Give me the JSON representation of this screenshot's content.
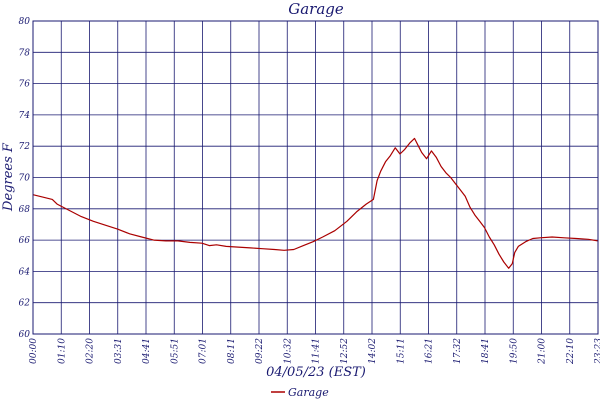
{
  "colors": {
    "axis": "#191970",
    "grid": "#191970",
    "series": "#aa0000",
    "background": "#ffffff"
  },
  "chart_data": {
    "type": "line",
    "title": "Garage",
    "xlabel": "04/05/23 (EST)",
    "ylabel": "Degrees F",
    "ylim": [
      60,
      80
    ],
    "yticks": [
      60,
      62,
      64,
      66,
      68,
      70,
      72,
      74,
      76,
      78,
      80
    ],
    "xticks": [
      "00:00",
      "01:10",
      "02:20",
      "03:31",
      "04:41",
      "05:51",
      "07:01",
      "08:11",
      "09:22",
      "10:32",
      "11:41",
      "12:52",
      "14:02",
      "15:11",
      "16:21",
      "17:32",
      "18:41",
      "19:50",
      "21:00",
      "22:10",
      "23:23"
    ],
    "grid": true,
    "legend": {
      "position": "bottom-center",
      "entries": [
        "Garage"
      ]
    },
    "series": [
      {
        "name": "Garage",
        "x": [
          0.0,
          0.4,
          0.8,
          1.0,
          1.5,
          2.0,
          2.5,
          3.0,
          3.5,
          4.0,
          4.5,
          5.0,
          5.5,
          6.0,
          6.5,
          7.0,
          7.3,
          7.6,
          8.0,
          8.5,
          9.0,
          9.5,
          10.0,
          10.4,
          10.8,
          11.2,
          11.6,
          12.0,
          12.5,
          13.0,
          13.4,
          13.8,
          14.1,
          14.25,
          14.4,
          14.6,
          14.8,
          15.0,
          15.2,
          15.4,
          15.6,
          15.8,
          16.0,
          16.1,
          16.3,
          16.5,
          16.7,
          16.9,
          17.1,
          17.3,
          17.5,
          17.7,
          17.9,
          18.1,
          18.3,
          18.5,
          18.7,
          18.9,
          19.1,
          19.3,
          19.5,
          19.7,
          19.85,
          19.95,
          20.1,
          20.4,
          20.7,
          21.0,
          21.5,
          22.0,
          22.5,
          23.0,
          23.4
        ],
        "values": [
          68.9,
          68.75,
          68.6,
          68.3,
          67.9,
          67.5,
          67.2,
          66.95,
          66.7,
          66.4,
          66.2,
          66.0,
          65.95,
          65.95,
          65.85,
          65.8,
          65.65,
          65.7,
          65.6,
          65.55,
          65.5,
          65.45,
          65.4,
          65.35,
          65.4,
          65.65,
          65.9,
          66.2,
          66.6,
          67.2,
          67.8,
          68.3,
          68.6,
          69.8,
          70.4,
          71.0,
          71.4,
          71.9,
          71.5,
          71.8,
          72.2,
          72.5,
          71.9,
          71.6,
          71.2,
          71.7,
          71.3,
          70.7,
          70.3,
          70.0,
          69.6,
          69.2,
          68.8,
          68.1,
          67.6,
          67.2,
          66.8,
          66.2,
          65.7,
          65.1,
          64.6,
          64.2,
          64.5,
          65.2,
          65.6,
          65.9,
          66.1,
          66.15,
          66.2,
          66.15,
          66.1,
          66.05,
          65.95
        ]
      }
    ]
  }
}
